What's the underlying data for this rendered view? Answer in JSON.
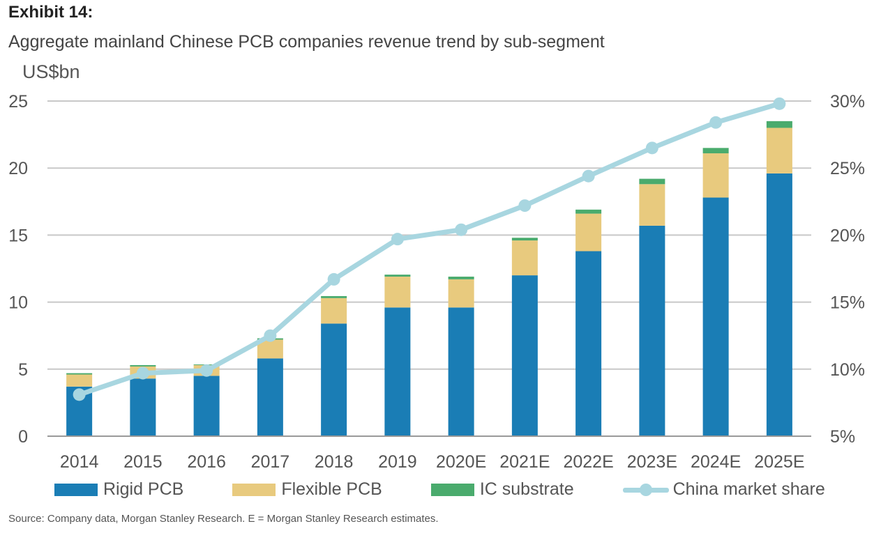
{
  "header": {
    "exhibit": "Exhibit 14:",
    "subtitle": "Aggregate mainland Chinese PCB companies revenue trend by sub-segment",
    "unit": "US$bn"
  },
  "source": "Source: Company data, Morgan Stanley Research. E = Morgan Stanley Research estimates.",
  "colors": {
    "rigid": "#1a7db5",
    "flexible": "#e8ca7e",
    "ic": "#4aab6d",
    "share": "#a8d6e0",
    "grid": "#c8c8c8",
    "axis": "#999999"
  },
  "legend": {
    "rigid": "Rigid PCB",
    "flexible": "Flexible PCB",
    "ic": "IC substrate",
    "share": "China market share"
  },
  "chart_data": {
    "type": "bar",
    "stacked": true,
    "categories": [
      "2014",
      "2015",
      "2016",
      "2017",
      "2018",
      "2019",
      "2020E",
      "2021E",
      "2022E",
      "2023E",
      "2024E",
      "2025E"
    ],
    "series": [
      {
        "name": "Rigid PCB",
        "axis": "left",
        "values": [
          3.7,
          4.3,
          4.5,
          5.8,
          8.4,
          9.6,
          9.6,
          12.0,
          13.8,
          15.7,
          17.8,
          19.6
        ]
      },
      {
        "name": "Flexible PCB",
        "axis": "left",
        "values": [
          0.9,
          0.9,
          0.8,
          1.4,
          1.9,
          2.3,
          2.1,
          2.6,
          2.8,
          3.1,
          3.3,
          3.4
        ]
      },
      {
        "name": "IC substrate",
        "axis": "left",
        "values": [
          0.1,
          0.1,
          0.05,
          0.1,
          0.15,
          0.15,
          0.2,
          0.2,
          0.3,
          0.4,
          0.4,
          0.5
        ]
      },
      {
        "name": "China market share",
        "type": "line",
        "axis": "right",
        "values": [
          8.1,
          9.7,
          9.9,
          12.5,
          16.7,
          19.7,
          20.4,
          22.2,
          24.4,
          26.5,
          28.4,
          29.8
        ]
      }
    ],
    "yleft": {
      "min": 0,
      "max": 25,
      "ticks": [
        "0",
        "5",
        "10",
        "15",
        "20",
        "25"
      ]
    },
    "yright": {
      "min": 5,
      "max": 30,
      "ticks": [
        "5%",
        "10%",
        "15%",
        "20%",
        "25%",
        "30%"
      ]
    },
    "grid": true,
    "legend_position": "bottom"
  }
}
